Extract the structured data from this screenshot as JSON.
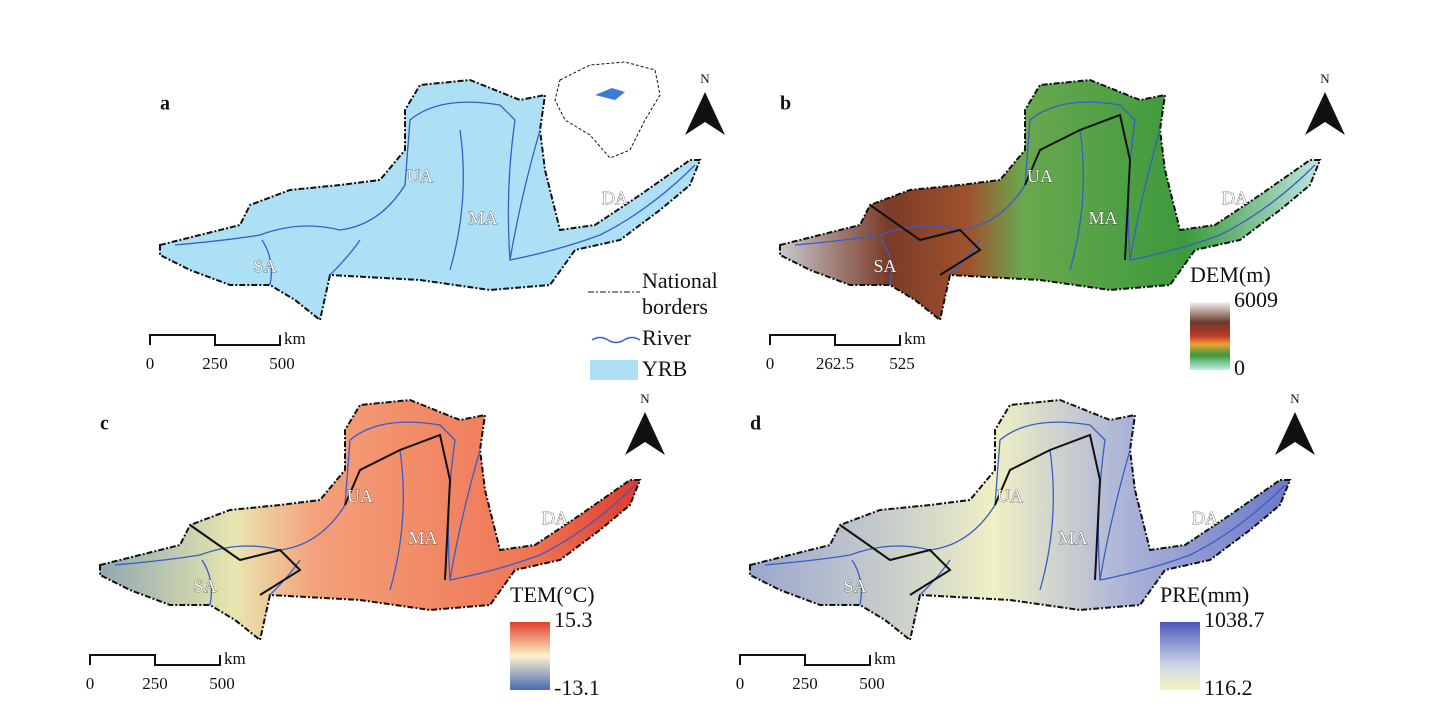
{
  "panels": [
    {
      "label": "a",
      "regions": [
        "UA",
        "MA",
        "SA",
        "DA"
      ],
      "north": "N",
      "scale": [
        "0",
        "250",
        "500"
      ],
      "scale_unit": "km",
      "legend": {
        "items": [
          "National borders",
          "River",
          "YRB"
        ]
      }
    },
    {
      "label": "b",
      "regions": [
        "UA",
        "MA",
        "SA",
        "DA"
      ],
      "north": "N",
      "scale": [
        "0",
        "262.5",
        "525"
      ],
      "scale_unit": "km",
      "legend": {
        "title": "DEM(m)",
        "max": "6009",
        "min": "0"
      }
    },
    {
      "label": "c",
      "regions": [
        "UA",
        "MA",
        "SA",
        "DA"
      ],
      "north": "N",
      "scale": [
        "0",
        "250",
        "500"
      ],
      "scale_unit": "km",
      "legend": {
        "title": "TEM(°C)",
        "max": "15.3",
        "min": "-13.1"
      }
    },
    {
      "label": "d",
      "regions": [
        "UA",
        "MA",
        "SA",
        "DA"
      ],
      "north": "N",
      "scale": [
        "0",
        "250",
        "500"
      ],
      "scale_unit": "km",
      "legend": {
        "title": "PRE(mm)",
        "max": "1038.7",
        "min": "116.2"
      }
    }
  ]
}
